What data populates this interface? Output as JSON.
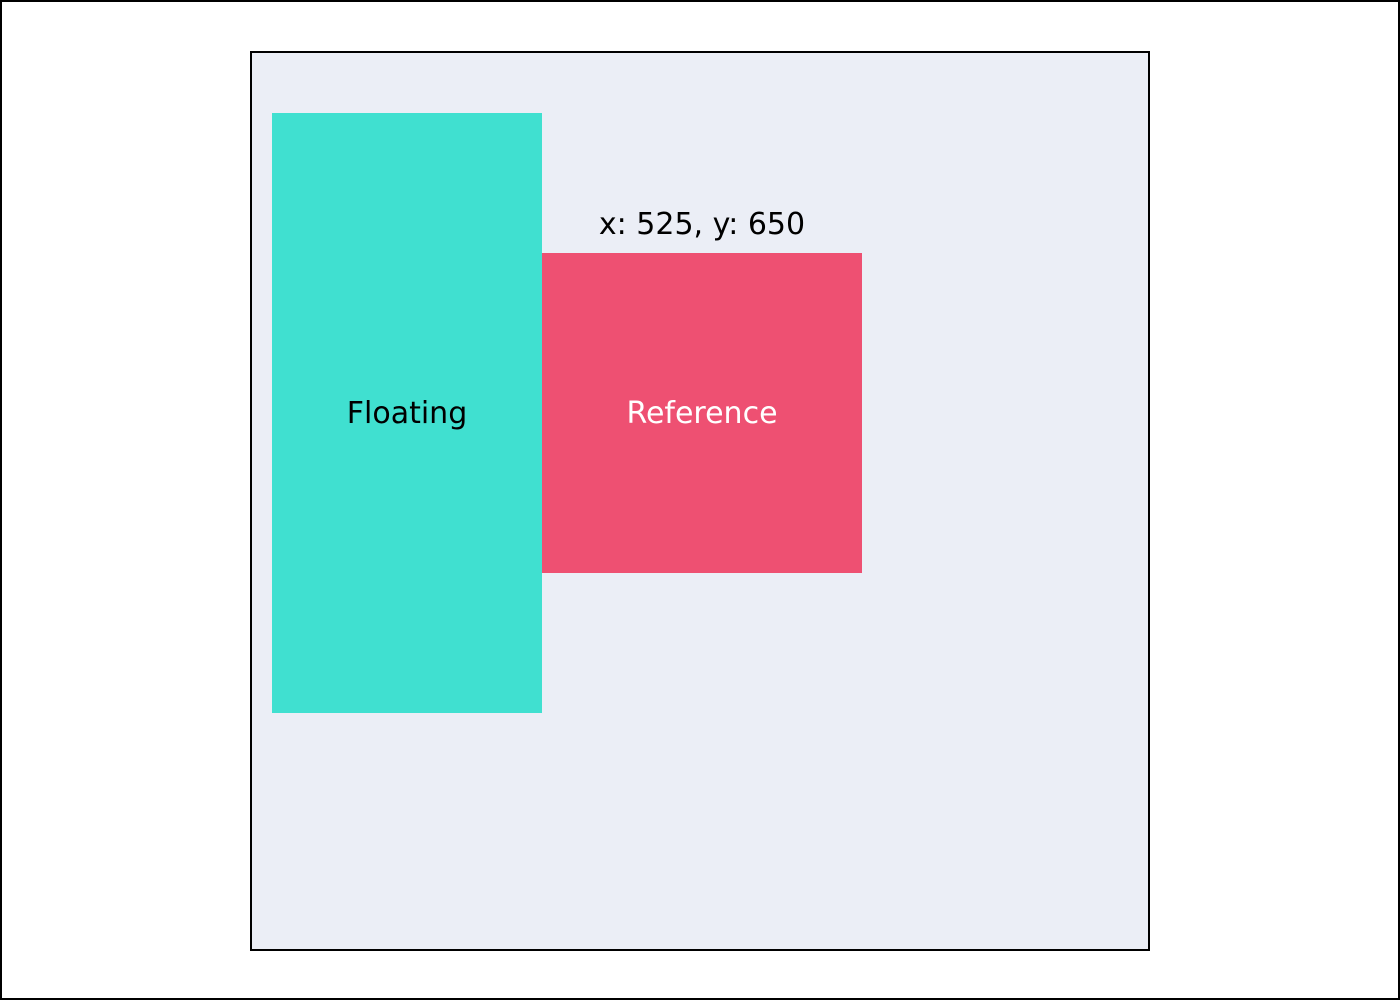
{
  "floating": {
    "label": "Floating",
    "color": "#40e0d0"
  },
  "reference": {
    "label": "Reference",
    "color": "#ee5072"
  },
  "coordinates": {
    "text": "x: 525, y: 650"
  },
  "playground": {
    "background": "#ebeef6"
  }
}
